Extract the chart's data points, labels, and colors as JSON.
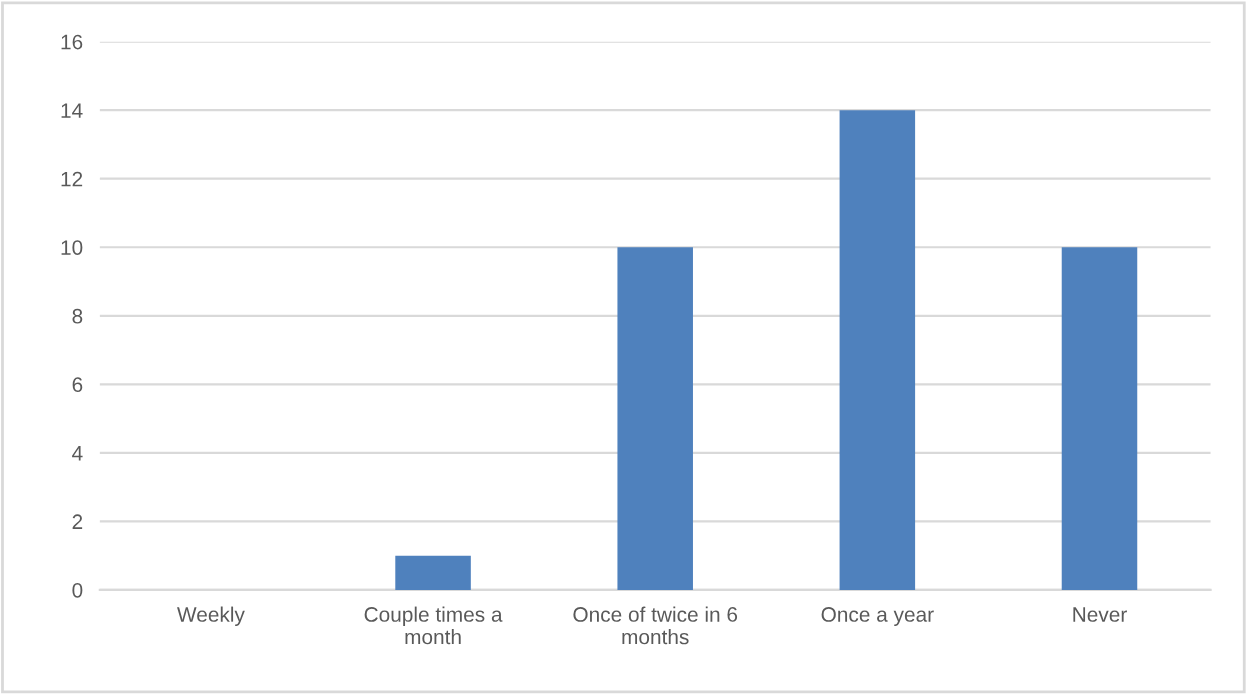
{
  "chart_data": {
    "type": "bar",
    "categories": [
      "Weekly",
      "Couple times a month",
      "Once of twice in 6 months",
      "Once a year",
      "Never"
    ],
    "values": [
      0,
      1,
      10,
      14,
      10
    ],
    "color": "#4f81bd",
    "ylim": [
      0,
      16
    ],
    "yticks": [
      0,
      2,
      4,
      6,
      8,
      10,
      12,
      14,
      16
    ],
    "grid": "y"
  }
}
